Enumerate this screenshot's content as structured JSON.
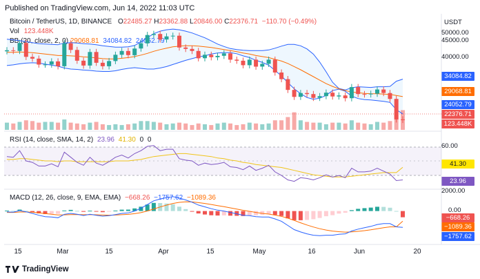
{
  "header": {
    "published": "Published on TradingView.com, Jun 14, 2022 11:03 UTC",
    "symbol": "Bitcoin / TetherUS, 1D, BINANCE",
    "ohlc": {
      "o_label": "O",
      "o": "22485.27",
      "h_label": "H",
      "h": "23362.88",
      "l_label": "L",
      "l": "20846.00",
      "c_label": "C",
      "c": "22376.71",
      "change": "−110.70 (−0.49%)"
    },
    "vol_label": "Vol",
    "vol": "123.448K",
    "bb_label": "BB (20, close, 2, 0)",
    "bb_values": [
      "29068.81",
      "34084.82",
      "24052.79"
    ],
    "rsi_label": "RSI (14, close, SMA, 14, 2)",
    "rsi_values": [
      "23.96",
      "41.30",
      "0",
      "0"
    ],
    "macd_label": "MACD (12, 26, close, 9, EMA, EMA)",
    "macd_values": [
      "−668.26",
      "−1757.62",
      "−1089.36"
    ]
  },
  "price_axis": {
    "unit": "USDT",
    "ticks": [
      "50000.00",
      "45000.00",
      "40000.00"
    ]
  },
  "price_tags": [
    {
      "text": "34084.82",
      "color": "#2962ff"
    },
    {
      "text": "29068.81",
      "color": "#ff6d00"
    },
    {
      "text": "24052.79",
      "color": "#2962ff"
    },
    {
      "text": "22376.71",
      "color": "#ef5350"
    },
    {
      "text": "123.448K",
      "color": "#ef5350"
    }
  ],
  "rsi_axis": {
    "ticks": [
      "60.00"
    ],
    "tags": [
      {
        "text": "41.30",
        "color": "#ffe600",
        "fg": "#131722"
      },
      {
        "text": "23.96",
        "color": "#7e57c2",
        "fg": "#ffffff"
      }
    ]
  },
  "macd_axis": {
    "ticks": [
      "2000.00",
      "0.00"
    ],
    "tags": [
      {
        "text": "−668.26",
        "color": "#ef5350"
      },
      {
        "text": "−1089.36",
        "color": "#ff6d00"
      },
      {
        "text": "−1757.62",
        "color": "#2962ff"
      }
    ]
  },
  "x_axis": [
    "15",
    "Mar",
    "15",
    "Apr",
    "15",
    "May",
    "16",
    "Jun",
    "20"
  ],
  "footer": {
    "brand": "TradingView"
  },
  "colors": {
    "up": "#26a69a",
    "down": "#ef5350",
    "bb": "#2962ff",
    "basis": "#ff6d00",
    "rsi": "#7e57c2",
    "rsi_ma": "#f0c419"
  },
  "chart_data": {
    "type": "candlestick",
    "title": "Bitcoin / TetherUS, 1D, BINANCE",
    "x_dates": [
      "Feb 11",
      "Feb 13",
      "Feb 15",
      "Feb 17",
      "Feb 19",
      "Feb 21",
      "Feb 23",
      "Feb 25",
      "Feb 27",
      "Mar 1",
      "Mar 3",
      "Mar 5",
      "Mar 7",
      "Mar 9",
      "Mar 11",
      "Mar 13",
      "Mar 15",
      "Mar 17",
      "Mar 19",
      "Mar 21",
      "Mar 23",
      "Mar 25",
      "Mar 27",
      "Mar 29",
      "Mar 31",
      "Apr 2",
      "Apr 4",
      "Apr 6",
      "Apr 8",
      "Apr 10",
      "Apr 12",
      "Apr 14",
      "Apr 16",
      "Apr 18",
      "Apr 20",
      "Apr 22",
      "Apr 24",
      "Apr 26",
      "Apr 28",
      "Apr 30",
      "May 2",
      "May 4",
      "May 6",
      "May 8",
      "May 10",
      "May 12",
      "May 14",
      "May 16",
      "May 18",
      "May 20",
      "May 22",
      "May 24",
      "May 26",
      "May 28",
      "May 30",
      "Jun 1",
      "Jun 3",
      "Jun 5",
      "Jun 7",
      "Jun 9",
      "Jun 11",
      "Jun 13",
      "Jun 14"
    ],
    "close": [
      42400,
      42200,
      44500,
      40500,
      40000,
      38300,
      38300,
      39200,
      37800,
      44400,
      42500,
      39400,
      38000,
      41900,
      38800,
      37800,
      39300,
      41100,
      42200,
      41000,
      42900,
      44400,
      46800,
      47100,
      45500,
      46400,
      46600,
      43200,
      42800,
      42200,
      40100,
      41100,
      40400,
      40800,
      41500,
      39700,
      39400,
      38100,
      39700,
      37700,
      38500,
      39700,
      36000,
      34100,
      31000,
      29000,
      30100,
      29800,
      28700,
      29200,
      30200,
      29100,
      29400,
      28600,
      31800,
      29800,
      29700,
      29900,
      31100,
      30100,
      28400,
      22500,
      22376.71
    ],
    "bb_upper": [
      45600,
      45400,
      45200,
      44900,
      44600,
      44300,
      44200,
      44100,
      44000,
      44500,
      44600,
      44500,
      44300,
      44200,
      44000,
      43700,
      43500,
      43300,
      43300,
      43400,
      43800,
      44800,
      46000,
      47200,
      47900,
      48300,
      48500,
      48300,
      47900,
      47400,
      46700,
      46000,
      45100,
      44200,
      43500,
      42900,
      42600,
      42400,
      42300,
      42300,
      42300,
      42500,
      43000,
      43600,
      44100,
      44100,
      43700,
      42800,
      41300,
      39000,
      36200,
      33200,
      31400,
      31000,
      31600,
      31900,
      31800,
      31700,
      31900,
      31900,
      32000,
      33500,
      34084.82
    ],
    "bb_basis": [
      41800,
      41800,
      41900,
      41800,
      41700,
      41500,
      41300,
      41100,
      40900,
      40900,
      40800,
      40700,
      40500,
      40400,
      40200,
      40000,
      39900,
      39900,
      40100,
      40300,
      40600,
      41000,
      41500,
      42100,
      42600,
      43000,
      43400,
      43600,
      43700,
      43700,
      43600,
      43400,
      43200,
      42900,
      42600,
      42300,
      42000,
      41600,
      41300,
      40900,
      40600,
      40300,
      39800,
      39300,
      38600,
      37700,
      36800,
      35800,
      34800,
      33800,
      32800,
      32000,
      31300,
      30800,
      30400,
      30200,
      30000,
      29900,
      29900,
      29800,
      29700,
      29400,
      29068.81
    ],
    "bb_lower": [
      38000,
      38200,
      38500,
      38700,
      38800,
      38700,
      38400,
      38100,
      37800,
      37300,
      37000,
      36900,
      36700,
      36600,
      36400,
      36300,
      36300,
      36500,
      36900,
      37200,
      37400,
      37200,
      37000,
      37000,
      37300,
      37700,
      38300,
      38900,
      39500,
      40000,
      40500,
      40800,
      41300,
      41600,
      41700,
      41700,
      41400,
      40800,
      40300,
      39500,
      38900,
      38100,
      36600,
      35000,
      33100,
      31300,
      29900,
      28800,
      28300,
      28600,
      29400,
      30800,
      31200,
      30600,
      29200,
      28500,
      28200,
      28100,
      27900,
      27700,
      27400,
      25300,
      24052.79
    ],
    "volume_k": [
      45,
      40,
      50,
      60,
      55,
      45,
      50,
      50,
      45,
      65,
      45,
      40,
      35,
      45,
      50,
      35,
      30,
      35,
      30,
      35,
      40,
      55,
      55,
      50,
      45,
      35,
      40,
      45,
      40,
      30,
      40,
      35,
      30,
      40,
      45,
      40,
      30,
      35,
      45,
      40,
      35,
      40,
      60,
      60,
      80,
      110,
      60,
      50,
      45,
      45,
      35,
      45,
      45,
      40,
      60,
      45,
      40,
      35,
      50,
      45,
      55,
      110,
      123.448
    ],
    "rsi": [
      56,
      55,
      64,
      50,
      48,
      43,
      43,
      46,
      42,
      62,
      55,
      48,
      44,
      55,
      47,
      44,
      49,
      55,
      58,
      54,
      60,
      64,
      70,
      71,
      64,
      66,
      66,
      53,
      51,
      50,
      44,
      47,
      45,
      46,
      48,
      42,
      41,
      38,
      43,
      37,
      40,
      44,
      35,
      30,
      24,
      22,
      27,
      26,
      24,
      27,
      31,
      28,
      30,
      27,
      40,
      35,
      35,
      36,
      40,
      36,
      32,
      23,
      23.96
    ],
    "rsi_ma": [
      52,
      52,
      53,
      53,
      52,
      51,
      50,
      50,
      49,
      50,
      50,
      49,
      49,
      49,
      49,
      49,
      49,
      50,
      50,
      50,
      51,
      52,
      54,
      56,
      57,
      58,
      59,
      60,
      60,
      59,
      58,
      57,
      56,
      54,
      53,
      51,
      50,
      48,
      47,
      45,
      44,
      43,
      42,
      41,
      39,
      37,
      35,
      33,
      31,
      30,
      29,
      28,
      28,
      28,
      29,
      30,
      31,
      32,
      33,
      34,
      34,
      34,
      41.3
    ],
    "macd": [
      -100,
      -120,
      50,
      -80,
      -250,
      -450,
      -600,
      -650,
      -720,
      -350,
      -250,
      -350,
      -480,
      -350,
      -450,
      -550,
      -500,
      -380,
      -250,
      -200,
      0,
      300,
      700,
      1100,
      1300,
      1450,
      1550,
      1400,
      1200,
      950,
      650,
      450,
      250,
      100,
      0,
      -150,
      -300,
      -450,
      -500,
      -600,
      -650,
      -650,
      -850,
      -1100,
      -1550,
      -2000,
      -2250,
      -2450,
      -2600,
      -2650,
      -2600,
      -2600,
      -2500,
      -2450,
      -2150,
      -1950,
      -1800,
      -1650,
      -1450,
      -1350,
      -1350,
      -1700,
      -1757.62
    ],
    "signal": [
      -150,
      -145,
      -105,
      -100,
      -130,
      -195,
      -275,
      -350,
      -425,
      -410,
      -380,
      -375,
      -395,
      -385,
      -400,
      -430,
      -445,
      -430,
      -395,
      -355,
      -285,
      -170,
      5,
      225,
      440,
      640,
      820,
      935,
      990,
      980,
      910,
      820,
      705,
      585,
      470,
      345,
      215,
      85,
      -30,
      -145,
      -250,
      -330,
      -435,
      -570,
      -765,
      -1010,
      -1260,
      -1500,
      -1720,
      -1905,
      -2045,
      -2155,
      -2225,
      -2270,
      -2245,
      -2185,
      -2110,
      -2020,
      -1910,
      -1795,
      -1705,
      -1705,
      -1089.36
    ],
    "macd_hist": [
      50,
      25,
      155,
      20,
      -120,
      -255,
      -325,
      -300,
      -295,
      60,
      130,
      25,
      -85,
      35,
      -50,
      -120,
      -55,
      50,
      145,
      155,
      285,
      470,
      695,
      875,
      860,
      810,
      730,
      465,
      210,
      -30,
      -260,
      -370,
      -455,
      -485,
      -470,
      -495,
      -515,
      -535,
      -470,
      -455,
      -400,
      -320,
      -415,
      -530,
      -785,
      -990,
      -990,
      -950,
      -880,
      -745,
      -555,
      -445,
      -275,
      -180,
      95,
      235,
      310,
      370,
      460,
      445,
      355,
      5,
      -668.26
    ],
    "ylim": [
      19500,
      52500
    ],
    "rsi_ylim": [
      15,
      85
    ],
    "macd_ylim": [
      -3300,
      2200
    ]
  }
}
